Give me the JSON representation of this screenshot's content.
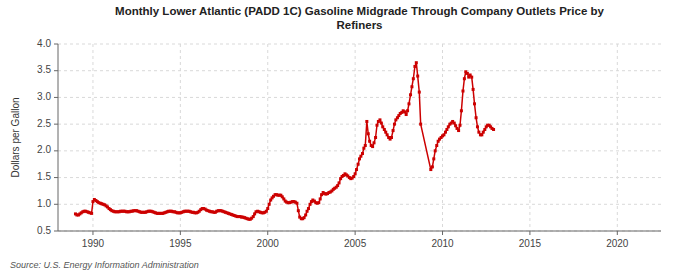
{
  "chart_data": {
    "type": "line",
    "title": "Monthly Lower Atlantic (PADD 1C) Gasoline Midgrade Through Company Outlets Price by\nRefiners",
    "y_label": "Dollars per Gallon",
    "source": "Source: U.S. Energy Information Administration",
    "color": "#cc0000",
    "marker": "square",
    "grid": true,
    "xlim": [
      1988.0,
      2022.5
    ],
    "ylim": [
      0.5,
      4.0
    ],
    "xticks": [
      1990,
      1995,
      2000,
      2005,
      2010,
      2015,
      2020
    ],
    "yticks": [
      0.5,
      {
        "value": 1.0,
        "label": "1.0"
      },
      1.5,
      {
        "value": 2.0,
        "label": "2.0"
      },
      2.5,
      {
        "value": 3.0,
        "label": "3.0"
      },
      3.5,
      {
        "value": 4.0,
        "label": "4.0"
      }
    ],
    "x": [
      1989.0,
      1989.08,
      1989.17,
      1989.25,
      1989.33,
      1989.42,
      1989.5,
      1989.58,
      1989.67,
      1989.75,
      1989.83,
      1989.92,
      1990.0,
      1990.08,
      1990.17,
      1990.25,
      1990.33,
      1990.42,
      1990.5,
      1990.58,
      1990.67,
      1990.75,
      1990.83,
      1990.92,
      1991.0,
      1991.08,
      1991.17,
      1991.25,
      1991.33,
      1991.42,
      1991.5,
      1991.58,
      1991.67,
      1991.75,
      1991.83,
      1991.92,
      1992.0,
      1992.08,
      1992.17,
      1992.25,
      1992.33,
      1992.42,
      1992.5,
      1992.58,
      1992.67,
      1992.75,
      1992.83,
      1992.92,
      1993.0,
      1993.08,
      1993.17,
      1993.25,
      1993.33,
      1993.42,
      1993.5,
      1993.58,
      1993.67,
      1993.75,
      1993.83,
      1993.92,
      1994.0,
      1994.08,
      1994.17,
      1994.25,
      1994.33,
      1994.42,
      1994.5,
      1994.58,
      1994.67,
      1994.75,
      1994.83,
      1994.92,
      1995.0,
      1995.08,
      1995.17,
      1995.25,
      1995.33,
      1995.42,
      1995.5,
      1995.58,
      1995.67,
      1995.75,
      1995.83,
      1995.92,
      1996.0,
      1996.08,
      1996.17,
      1996.25,
      1996.33,
      1996.42,
      1996.5,
      1996.58,
      1996.67,
      1996.75,
      1996.83,
      1996.92,
      1997.0,
      1997.08,
      1997.17,
      1997.25,
      1997.33,
      1997.42,
      1997.5,
      1997.58,
      1997.67,
      1997.75,
      1997.83,
      1997.92,
      1998.0,
      1998.08,
      1998.17,
      1998.25,
      1998.33,
      1998.42,
      1998.5,
      1998.58,
      1998.67,
      1998.75,
      1998.83,
      1998.92,
      1999.0,
      1999.08,
      1999.17,
      1999.25,
      1999.33,
      1999.42,
      1999.5,
      1999.58,
      1999.67,
      1999.75,
      1999.83,
      1999.92,
      2000.0,
      2000.08,
      2000.17,
      2000.25,
      2000.33,
      2000.42,
      2000.5,
      2000.58,
      2000.67,
      2000.75,
      2000.83,
      2000.92,
      2001.0,
      2001.08,
      2001.17,
      2001.25,
      2001.33,
      2001.42,
      2001.5,
      2001.58,
      2001.67,
      2001.75,
      2001.83,
      2001.92,
      2002.0,
      2002.08,
      2002.17,
      2002.25,
      2002.33,
      2002.42,
      2002.5,
      2002.58,
      2002.67,
      2002.75,
      2002.83,
      2002.92,
      2003.0,
      2003.08,
      2003.17,
      2003.25,
      2003.33,
      2003.42,
      2003.5,
      2003.58,
      2003.67,
      2003.75,
      2003.83,
      2003.92,
      2004.0,
      2004.08,
      2004.17,
      2004.25,
      2004.33,
      2004.42,
      2004.5,
      2004.58,
      2004.67,
      2004.75,
      2004.83,
      2004.92,
      2005.0,
      2005.08,
      2005.17,
      2005.25,
      2005.33,
      2005.42,
      2005.5,
      2005.58,
      2005.67,
      2005.75,
      2005.83,
      2005.92,
      2006.0,
      2006.08,
      2006.17,
      2006.25,
      2006.33,
      2006.42,
      2006.5,
      2006.58,
      2006.67,
      2006.75,
      2006.83,
      2006.92,
      2007.0,
      2007.08,
      2007.17,
      2007.25,
      2007.33,
      2007.42,
      2007.5,
      2007.58,
      2007.67,
      2007.75,
      2007.83,
      2007.92,
      2008.0,
      2008.08,
      2008.17,
      2008.25,
      2008.33,
      2008.42,
      2008.5,
      2008.58,
      2008.67,
      2008.75,
      2009.33,
      2009.42,
      2009.5,
      2009.58,
      2009.67,
      2009.75,
      2009.83,
      2009.92,
      2010.0,
      2010.08,
      2010.17,
      2010.25,
      2010.33,
      2010.42,
      2010.5,
      2010.58,
      2010.67,
      2010.75,
      2010.83,
      2010.92,
      2011.0,
      2011.08,
      2011.17,
      2011.25,
      2011.33,
      2011.42,
      2011.5,
      2011.58,
      2011.67,
      2011.75,
      2011.83,
      2011.92,
      2012.0,
      2012.08,
      2012.17,
      2012.25,
      2012.33,
      2012.42,
      2012.5,
      2012.58,
      2012.67,
      2012.75,
      2012.83,
      2012.92
    ],
    "values": [
      0.82,
      0.8,
      0.8,
      0.82,
      0.84,
      0.86,
      0.87,
      0.87,
      0.86,
      0.85,
      0.84,
      0.83,
      1.05,
      1.09,
      1.07,
      1.05,
      1.03,
      1.02,
      1.01,
      1.0,
      0.99,
      0.97,
      0.95,
      0.92,
      0.9,
      0.88,
      0.87,
      0.86,
      0.86,
      0.86,
      0.86,
      0.87,
      0.87,
      0.87,
      0.87,
      0.86,
      0.86,
      0.86,
      0.87,
      0.87,
      0.88,
      0.88,
      0.88,
      0.87,
      0.86,
      0.85,
      0.85,
      0.85,
      0.85,
      0.86,
      0.87,
      0.87,
      0.87,
      0.86,
      0.85,
      0.84,
      0.83,
      0.83,
      0.83,
      0.83,
      0.83,
      0.84,
      0.85,
      0.86,
      0.87,
      0.87,
      0.87,
      0.86,
      0.86,
      0.85,
      0.84,
      0.84,
      0.84,
      0.85,
      0.86,
      0.87,
      0.87,
      0.87,
      0.87,
      0.86,
      0.85,
      0.85,
      0.84,
      0.84,
      0.85,
      0.87,
      0.9,
      0.92,
      0.92,
      0.91,
      0.89,
      0.88,
      0.87,
      0.86,
      0.86,
      0.85,
      0.85,
      0.87,
      0.88,
      0.88,
      0.88,
      0.87,
      0.86,
      0.85,
      0.84,
      0.83,
      0.82,
      0.81,
      0.8,
      0.79,
      0.78,
      0.77,
      0.77,
      0.77,
      0.76,
      0.76,
      0.75,
      0.74,
      0.73,
      0.72,
      0.72,
      0.74,
      0.77,
      0.82,
      0.86,
      0.87,
      0.86,
      0.85,
      0.84,
      0.84,
      0.85,
      0.87,
      0.92,
      1.0,
      1.08,
      1.12,
      1.15,
      1.18,
      1.18,
      1.17,
      1.17,
      1.17,
      1.14,
      1.1,
      1.06,
      1.04,
      1.03,
      1.03,
      1.04,
      1.05,
      1.05,
      1.04,
      1.02,
      0.88,
      0.76,
      0.73,
      0.73,
      0.75,
      0.8,
      0.87,
      0.92,
      1.0,
      1.05,
      1.08,
      1.06,
      1.03,
      1.02,
      1.03,
      1.1,
      1.18,
      1.22,
      1.2,
      1.19,
      1.2,
      1.22,
      1.23,
      1.25,
      1.28,
      1.3,
      1.32,
      1.35,
      1.4,
      1.48,
      1.52,
      1.54,
      1.57,
      1.55,
      1.53,
      1.5,
      1.48,
      1.49,
      1.52,
      1.57,
      1.65,
      1.75,
      1.85,
      1.9,
      1.95,
      2.05,
      2.1,
      2.55,
      2.32,
      2.18,
      2.1,
      2.08,
      2.15,
      2.25,
      2.48,
      2.55,
      2.58,
      2.52,
      2.45,
      2.4,
      2.35,
      2.3,
      2.25,
      2.22,
      2.25,
      2.38,
      2.5,
      2.58,
      2.62,
      2.66,
      2.7,
      2.72,
      2.75,
      2.73,
      2.68,
      2.75,
      2.88,
      3.05,
      3.2,
      3.35,
      3.58,
      3.65,
      3.4,
      3.1,
      2.5,
      1.65,
      1.7,
      1.85,
      2.0,
      2.1,
      2.18,
      2.22,
      2.25,
      2.28,
      2.3,
      2.35,
      2.4,
      2.45,
      2.5,
      2.52,
      2.55,
      2.52,
      2.47,
      2.42,
      2.38,
      2.48,
      2.75,
      3.12,
      3.35,
      3.48,
      3.45,
      3.38,
      3.42,
      3.38,
      3.15,
      2.88,
      2.62,
      2.45,
      2.35,
      2.3,
      2.3,
      2.35,
      2.4,
      2.45,
      2.48,
      2.48,
      2.45,
      2.42,
      2.4
    ]
  }
}
